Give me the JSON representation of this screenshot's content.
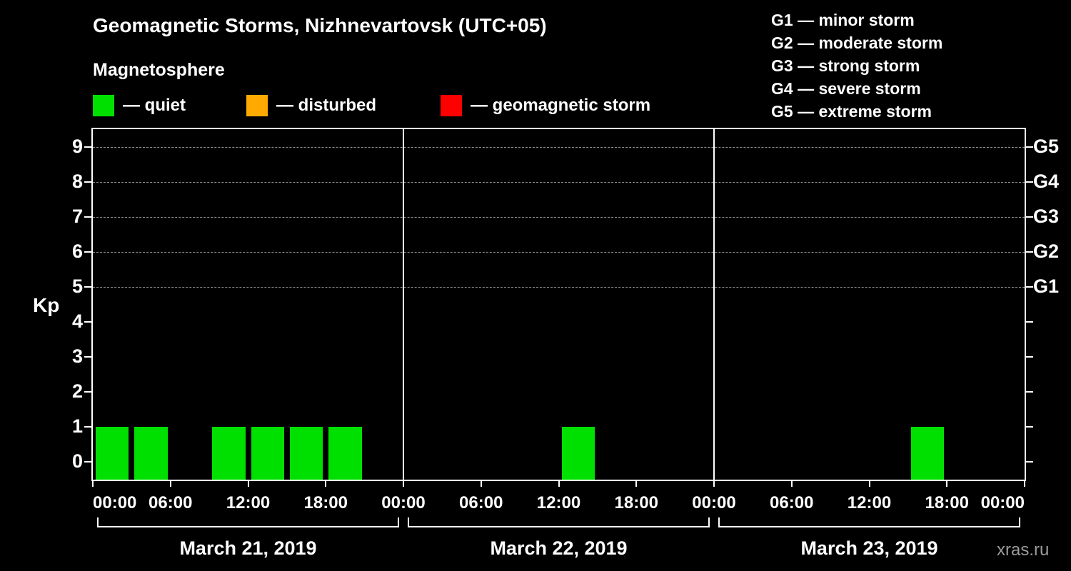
{
  "chart_data": {
    "type": "bar",
    "title": "Geomagnetic Storms, Nizhnevartovsk (UTC+05)",
    "subtitle": "Magnetosphere",
    "ylabel": "Kp",
    "ylim": [
      -0.5,
      9.5
    ],
    "y_ticks": [
      0,
      1,
      2,
      3,
      4,
      5,
      6,
      7,
      8,
      9
    ],
    "grid_levels": [
      5,
      6,
      7,
      8,
      9
    ],
    "right_axis_labels": [
      {
        "label": "G5",
        "kp": 9
      },
      {
        "label": "G4",
        "kp": 8
      },
      {
        "label": "G3",
        "kp": 7
      },
      {
        "label": "G2",
        "kp": 6
      },
      {
        "label": "G1",
        "kp": 5
      }
    ],
    "x_tick_labels": [
      "00:00",
      "06:00",
      "12:00",
      "18:00"
    ],
    "x_end_label": "00:00",
    "interval_hours": 3,
    "days": [
      {
        "date": "March 21, 2019",
        "kp": [
          1,
          1,
          0,
          1,
          1,
          1,
          1,
          0
        ]
      },
      {
        "date": "March 22, 2019",
        "kp": [
          0,
          0,
          0,
          0,
          1,
          0,
          0,
          0
        ]
      },
      {
        "date": "March 23, 2019",
        "kp": [
          0,
          0,
          0,
          0,
          0,
          1,
          0,
          0
        ]
      }
    ],
    "colors": {
      "quiet": "#00e000",
      "disturbed": "#ffaa00",
      "storm": "#ff0000"
    },
    "color_rule": {
      "quiet_kp_max": 4,
      "disturbed_kp": 5,
      "storm_kp_min": 6
    }
  },
  "legend": {
    "items": [
      {
        "key": "quiet",
        "label": "— quiet",
        "color": "#00e000"
      },
      {
        "key": "disturbed",
        "label": "— disturbed",
        "color": "#ffaa00"
      },
      {
        "key": "storm",
        "label": "— geomagnetic storm",
        "color": "#ff0000"
      }
    ]
  },
  "g_scale_legend": {
    "items": [
      "G1 — minor storm",
      "G2 — moderate storm",
      "G3 — strong storm",
      "G4 — severe storm",
      "G5 — extreme storm"
    ]
  },
  "footer": {
    "watermark": "xras.ru"
  }
}
